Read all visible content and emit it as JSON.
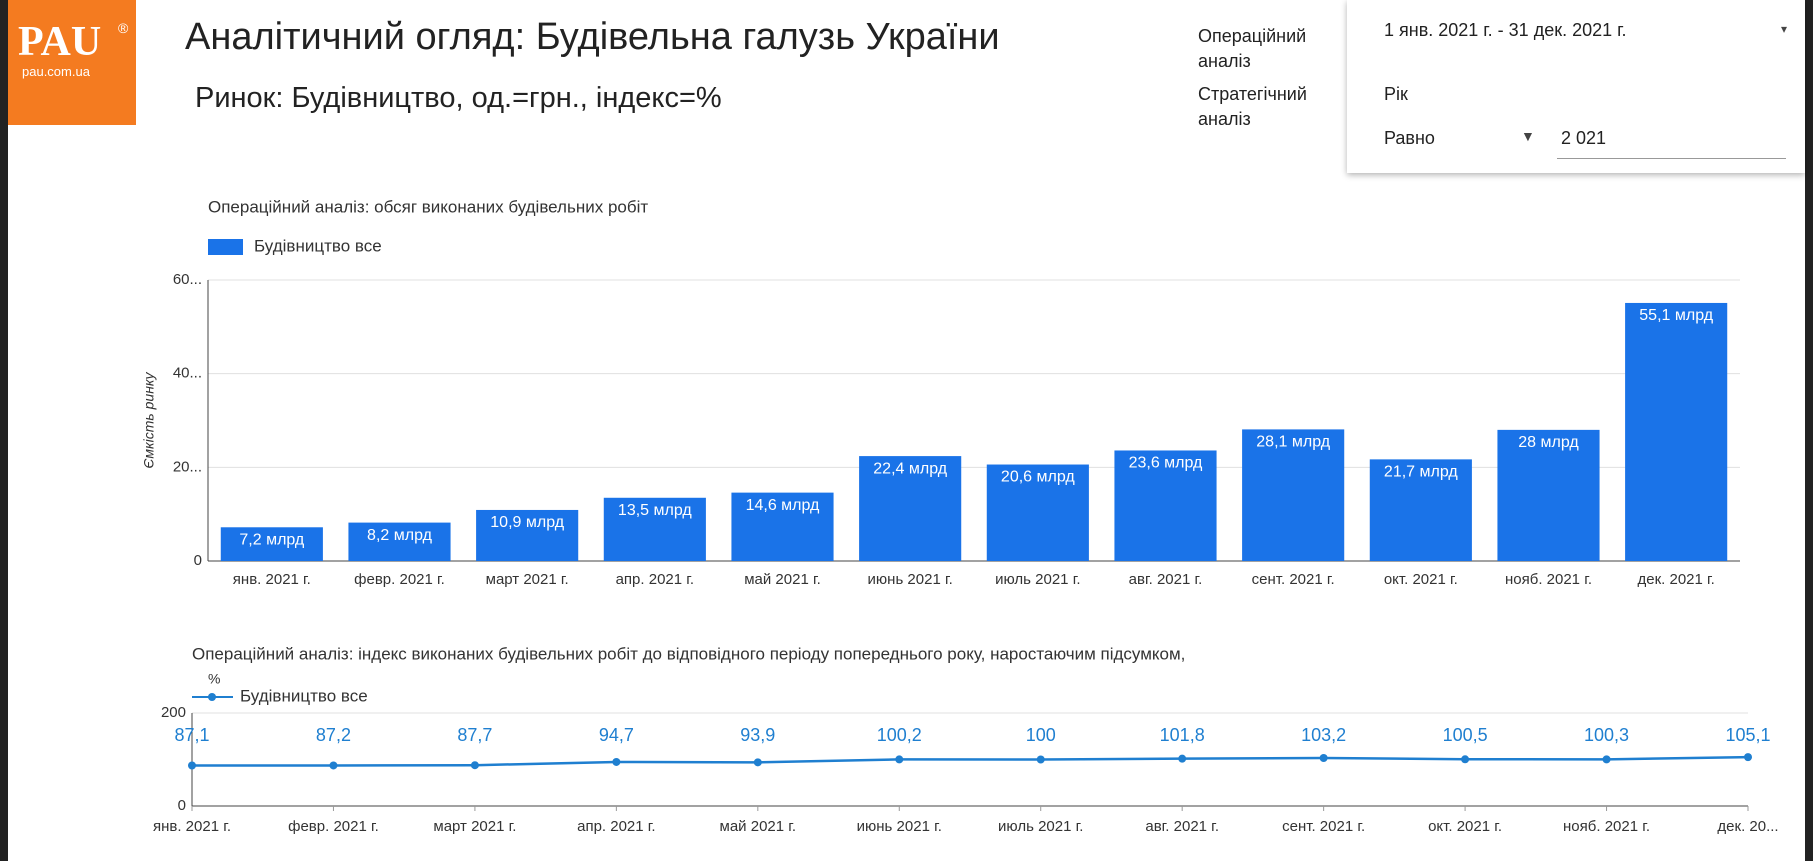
{
  "header": {
    "logo": {
      "text": "PAU",
      "mark": "®",
      "url": "pau.com.ua"
    },
    "title": "Аналітичний огляд: Будівельна галузь України",
    "subtitle": "Ринок: Будівництво, од.=грн., індекс=%",
    "nav": [
      "Операційний аналіз",
      "Стратегічний аналіз"
    ],
    "date_range": "1 янв. 2021 г. - 31 дек. 2021 г.",
    "filter": {
      "label": "Рік",
      "operator": "Равно",
      "value": "2 021"
    }
  },
  "chart_data": [
    {
      "type": "bar",
      "title": "Операційний аналіз: обсяг виконаних будівельних робіт",
      "y_label": "Ємкість ринку",
      "categories": [
        "янв. 2021 г.",
        "февр. 2021 г.",
        "март 2021 г.",
        "апр. 2021 г.",
        "май 2021 г.",
        "июнь 2021 г.",
        "июль 2021 г.",
        "авг. 2021 г.",
        "сент. 2021 г.",
        "окт. 2021 г.",
        "нояб. 2021 г.",
        "дек. 2021 г."
      ],
      "series": [
        {
          "name": "Будівництво все",
          "color": "#1a73e8",
          "values": [
            7.2,
            8.2,
            10.9,
            13.5,
            14.6,
            22.4,
            20.6,
            23.6,
            28.1,
            21.7,
            28,
            55.1
          ],
          "value_labels": [
            "7,2 млрд",
            "8,2 млрд",
            "10,9 млрд",
            "13,5 млрд",
            "14,6 млрд",
            "22,4 млрд",
            "20,6 млрд",
            "23,6 млрд",
            "28,1 млрд",
            "21,7 млрд",
            "28 млрд",
            "55,1 млрд"
          ]
        }
      ],
      "ylim": [
        0,
        60
      ],
      "yticks": [
        0,
        {
          "value": 20,
          "label": "20..."
        },
        {
          "value": 40,
          "label": "40..."
        },
        {
          "value": 60,
          "label": "60..."
        }
      ],
      "grid": true
    },
    {
      "type": "line",
      "title": "Операційний аналіз: індекс виконаних будівельних робіт до відповідного періоду попереднього року, наростаючим підсумком,",
      "title_unit": "%",
      "categories": [
        "янв. 2021 г.",
        "февр. 2021 г.",
        "март 2021 г.",
        "апр. 2021 г.",
        "май 2021 г.",
        "июнь 2021 г.",
        "июль 2021 г.",
        "авг. 2021 г.",
        "сент. 2021 г.",
        "окт. 2021 г.",
        "нояб. 2021 г.",
        "дек. 20..."
      ],
      "series": [
        {
          "name": "Будівництво все",
          "color": "#1f7fd0",
          "values": [
            87.1,
            87.2,
            87.7,
            94.7,
            93.9,
            100.2,
            100,
            101.8,
            103.2,
            100.5,
            100.3,
            105.1
          ],
          "value_labels": [
            "87,1",
            "87,2",
            "87,7",
            "94,7",
            "93,9",
            "100,2",
            "100",
            "101,8",
            "103,2",
            "100,5",
            "100,3",
            "105,1"
          ]
        }
      ],
      "ylim": [
        0,
        200
      ],
      "yticks": [
        0,
        200
      ],
      "grid": true
    }
  ]
}
